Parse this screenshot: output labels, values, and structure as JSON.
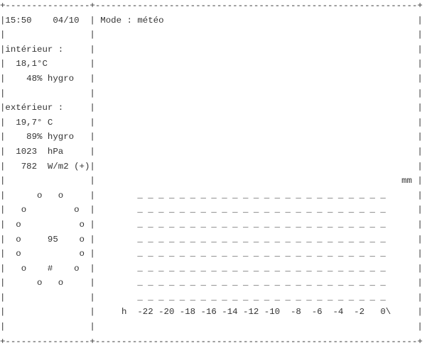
{
  "screen": {
    "lines": [
      "+----------------+-------------------------------------------------------------+",
      "|15:50    04/10  | Mode : météo                                                |",
      "|                |                                                             |",
      "|intérieur :     |                                                             |",
      "|  18,1°C        |                                                             |",
      "|    48% hygro   |                                                             |",
      "|                |                                                             |",
      "|extérieur :     |                                                             |",
      "|  19,7° C       |                                                             |",
      "|    89% hygro   |                                                             |",
      "|  1023  hPa     |                                                             |",
      "|   782  W/m2 (+)|                                                             |",
      "|                |                                                          mm |",
      "|      o   o     |        _ _ _ _ _ _ _ _ _ _ _ _ _ _ _ _ _ _ _ _ _ _ _ _      |",
      "|   o         o  |        _ _ _ _ _ _ _ _ _ _ _ _ _ _ _ _ _ _ _ _ _ _ _ _      |",
      "|  o           o |        _ _ _ _ _ _ _ _ _ _ _ _ _ _ _ _ _ _ _ _ _ _ _ _      |",
      "|  o     95    o |        _ _ _ _ _ _ _ _ _ _ _ _ _ _ _ _ _ _ _ _ _ _ _ _      |",
      "|  o           o |        _ _ _ _ _ _ _ _ _ _ _ _ _ _ _ _ _ _ _ _ _ _ _ _      |",
      "|   o    #    o  |        _ _ _ _ _ _ _ _ _ _ _ _ _ _ _ _ _ _ _ _ _ _ _ _      |",
      "|      o   o     |        _ _ _ _ _ _ _ _ _ _ _ _ _ _ _ _ _ _ _ _ _ _ _ _      |",
      "|                |        _ _ _ _ _ _ _ _ _ _ _ _ _ _ _ _ _ _ _ _ _ _ _ _      |",
      "|                |     h  -22 -20 -18 -16 -14 -12 -10  -8  -6  -4  -2   0\\     |",
      "|                |                                                             |",
      "+----------------+-------------------------------------------------------------+"
    ]
  }
}
